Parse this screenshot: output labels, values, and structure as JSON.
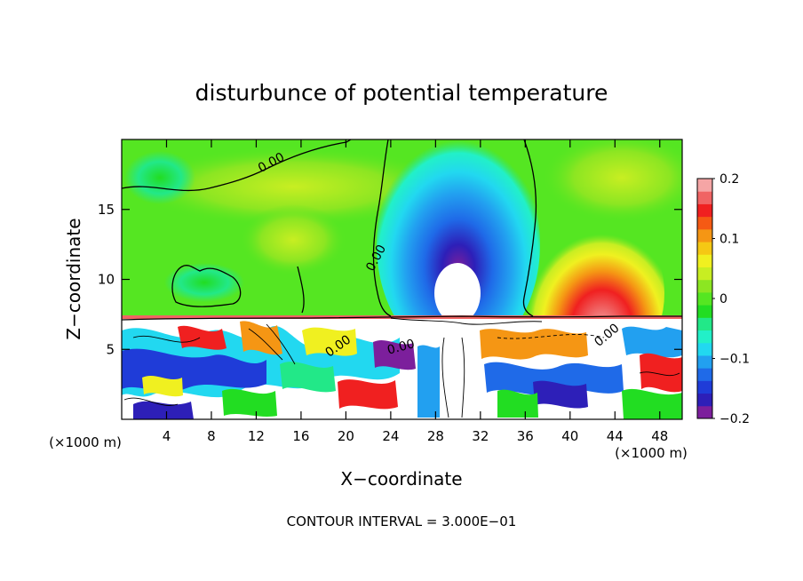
{
  "chart_data": {
    "type": "heatmap",
    "title": "disturbunce of potential temperature",
    "xlabel": "X−coordinate",
    "ylabel": "Z−coordinate",
    "x_unit_left": "(×1000 m)",
    "x_unit_right": "(×1000 m)",
    "footer": "CONTOUR INTERVAL = 3.000E−01",
    "xlim": [
      0,
      50
    ],
    "ylim": [
      0,
      20
    ],
    "x_ticks": [
      4,
      8,
      12,
      16,
      20,
      24,
      28,
      32,
      36,
      40,
      44,
      48
    ],
    "x_tick_labels": [
      "4",
      "8",
      "12",
      "16",
      "20",
      "24",
      "28",
      "32",
      "36",
      "40",
      "44",
      "48"
    ],
    "y_ticks": [
      5,
      10,
      15
    ],
    "y_tick_labels": [
      "5",
      "10",
      "15"
    ],
    "colorbar": {
      "range": [
        -0.2,
        0.2
      ],
      "tick_values": [
        0.2,
        0.1,
        0,
        -0.1,
        -0.2
      ],
      "tick_labels": [
        "0.2",
        "0.1",
        "0",
        "−0.1",
        "−0.2"
      ],
      "colors": [
        "#7c1f9c",
        "#2d1fb8",
        "#1f3cd8",
        "#1f6ae8",
        "#22a0f0",
        "#22d8f0",
        "#22f0c8",
        "#22e888",
        "#22dd22",
        "#55e622",
        "#8ce622",
        "#c8ee22",
        "#f0f020",
        "#f5c814",
        "#f59614",
        "#f55a14",
        "#f02020",
        "#f06464",
        "#f5a5a5"
      ]
    },
    "contour_labels": [
      {
        "text": "0.00",
        "x": 13.5,
        "z": 18.1,
        "angle": -28
      },
      {
        "text": "0.00",
        "x": 23.0,
        "z": 11.4,
        "angle": -62
      },
      {
        "text": "0.00",
        "x": 19.5,
        "z": 5.0,
        "angle": -35
      },
      {
        "text": "0.00",
        "x": 25.0,
        "z": 4.9,
        "angle": -15
      },
      {
        "text": "0.00",
        "x": 43.5,
        "z": 5.8,
        "angle": -40
      }
    ],
    "features": {
      "cold_anomaly_center": {
        "x": 30.5,
        "z": 12.0,
        "value": -0.2
      },
      "warm_anomaly_center": {
        "x": 42.0,
        "z": 9.0,
        "value": 0.2
      },
      "boundary_layer_top_z": 7.3
    }
  }
}
